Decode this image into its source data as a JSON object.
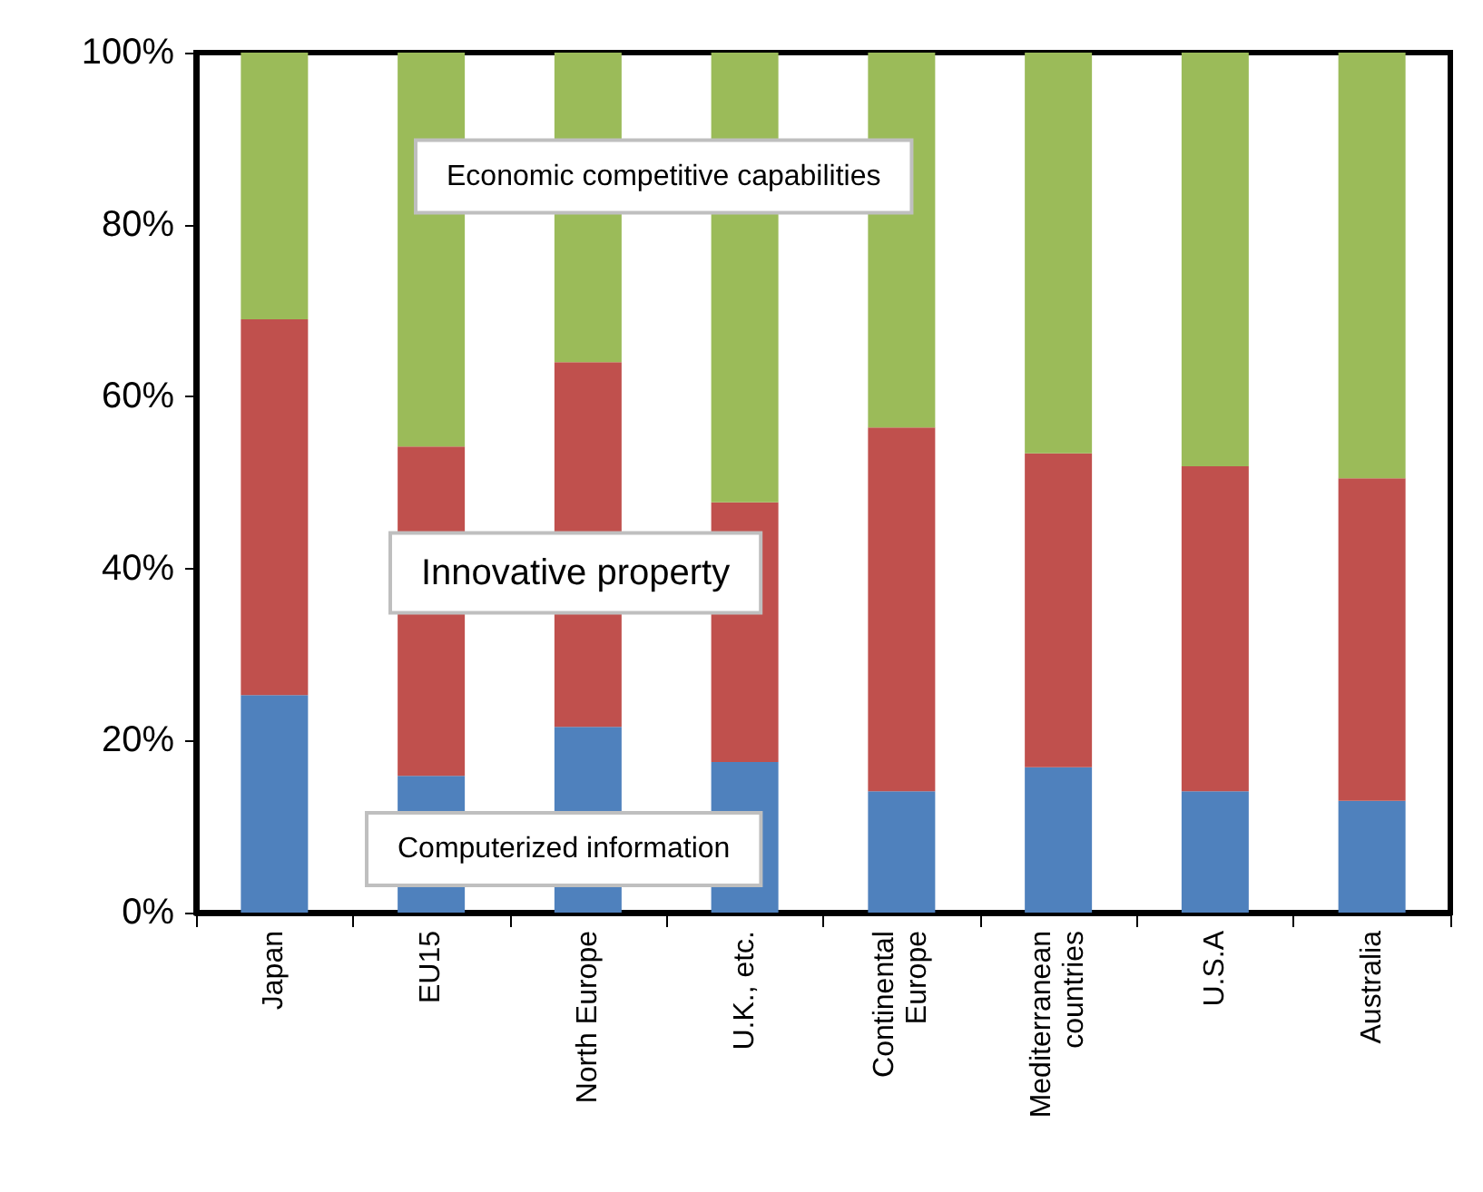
{
  "chart_data": {
    "type": "bar",
    "stacked": true,
    "categories": [
      "Japan",
      "EU15",
      "North Europe",
      "U.K., etc.",
      "Continental\nEurope",
      "Mediterranean\ncountries",
      "U.S.A",
      "Australia"
    ],
    "series": [
      {
        "name": "Computerized information",
        "color": "#4f81bd",
        "values": [
          25.3,
          15.9,
          21.6,
          17.5,
          14.1,
          16.9,
          14.1,
          13.0
        ]
      },
      {
        "name": "Innovative property",
        "color": "#c0504d",
        "values": [
          43.7,
          38.3,
          42.4,
          30.2,
          42.3,
          36.5,
          37.8,
          37.5
        ]
      },
      {
        "name": "Economic competitive capabilities",
        "color": "#9bbb59",
        "values": [
          31.0,
          45.8,
          36.0,
          52.3,
          43.6,
          46.6,
          48.1,
          49.5
        ]
      }
    ],
    "ylim": [
      0,
      100
    ],
    "yticks": [
      {
        "value": 0,
        "label": "0%"
      },
      {
        "value": 20,
        "label": "20%"
      },
      {
        "value": 40,
        "label": "40%"
      },
      {
        "value": 60,
        "label": "60%"
      },
      {
        "value": 80,
        "label": "80%"
      },
      {
        "value": 100,
        "label": "100%"
      }
    ],
    "grid": false,
    "legend": false
  }
}
